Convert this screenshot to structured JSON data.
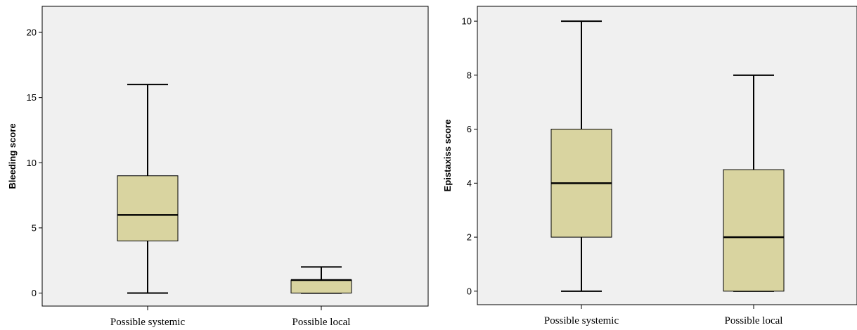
{
  "chart_data": [
    {
      "type": "box",
      "title": "",
      "xlabel": "",
      "ylabel": "Bleeding score",
      "ylim": [
        -1,
        22
      ],
      "yticks": [
        0,
        5,
        10,
        15,
        20
      ],
      "categories": [
        "Possible systemic",
        "Possible local"
      ],
      "boxes": [
        {
          "category": "Possible systemic",
          "min": 0,
          "q1": 4,
          "median": 6,
          "q3": 9,
          "max": 16
        },
        {
          "category": "Possible local",
          "min": 0,
          "q1": 0,
          "median": 1,
          "q3": 1,
          "max": 2
        }
      ],
      "grid": false,
      "legend": "none",
      "colors": {
        "box_fill": "#d9d4a0",
        "plot_bg": "#f0f0f0",
        "line": "#000000"
      }
    },
    {
      "type": "box",
      "title": "",
      "xlabel": "",
      "ylabel": "Epistaxiss score",
      "ylim": [
        -0.5,
        10.55
      ],
      "yticks": [
        0,
        2,
        4,
        6,
        8,
        10
      ],
      "categories": [
        "Possible systemic",
        "Possible local"
      ],
      "boxes": [
        {
          "category": "Possible systemic",
          "min": 0,
          "q1": 2,
          "median": 4,
          "q3": 6,
          "max": 10
        },
        {
          "category": "Possible local",
          "min": 0,
          "q1": 0,
          "median": 2,
          "q3": 4.5,
          "max": 8
        }
      ],
      "grid": false,
      "legend": "none",
      "colors": {
        "box_fill": "#d9d4a0",
        "plot_bg": "#f0f0f0",
        "line": "#000000"
      }
    }
  ]
}
